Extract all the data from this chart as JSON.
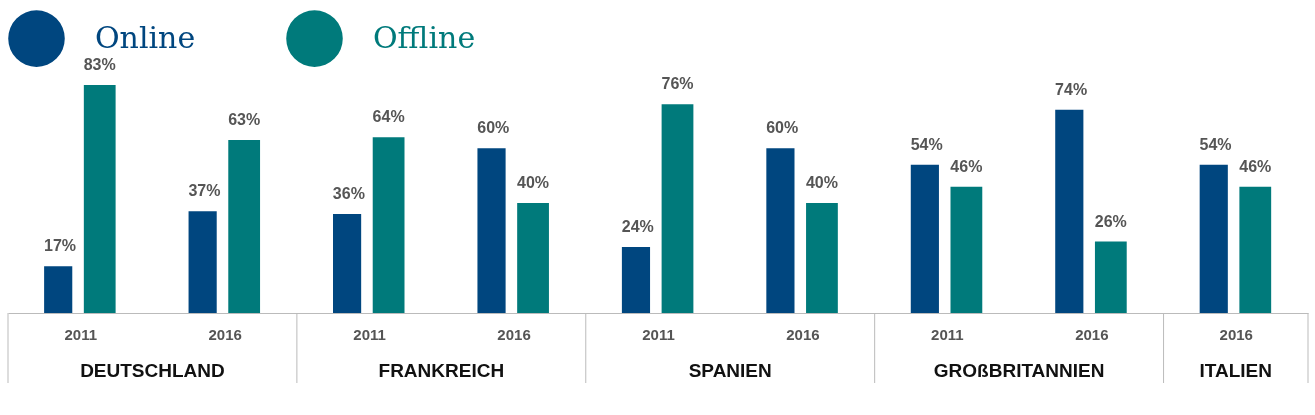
{
  "chart_data": {
    "type": "bar",
    "categories": [
      "2011",
      "2016",
      "2011",
      "2016",
      "2011",
      "2016",
      "2011",
      "2016",
      "2016"
    ],
    "series": [
      {
        "name": "Online",
        "color": "#00467f",
        "values": [
          17,
          37,
          36,
          60,
          24,
          60,
          54,
          74,
          54
        ],
        "value_labels": [
          "17%",
          "37%",
          "36%",
          "60%",
          "24%",
          "60%",
          "54%",
          "74%",
          "54%"
        ]
      },
      {
        "name": "Offline",
        "color": "#007a7b",
        "values": [
          83,
          63,
          64,
          40,
          76,
          40,
          46,
          26,
          46
        ],
        "value_labels": [
          "83%",
          "63%",
          "64%",
          "40%",
          "76%",
          "40%",
          "46%",
          "26%",
          "46%"
        ]
      }
    ],
    "annotations": [
      "DEUTSCHLAND",
      "FRANKREICH",
      "SPANIEN",
      "GROßBRITANNIEN",
      "ITALIEN"
    ],
    "legend": "top"
  }
}
